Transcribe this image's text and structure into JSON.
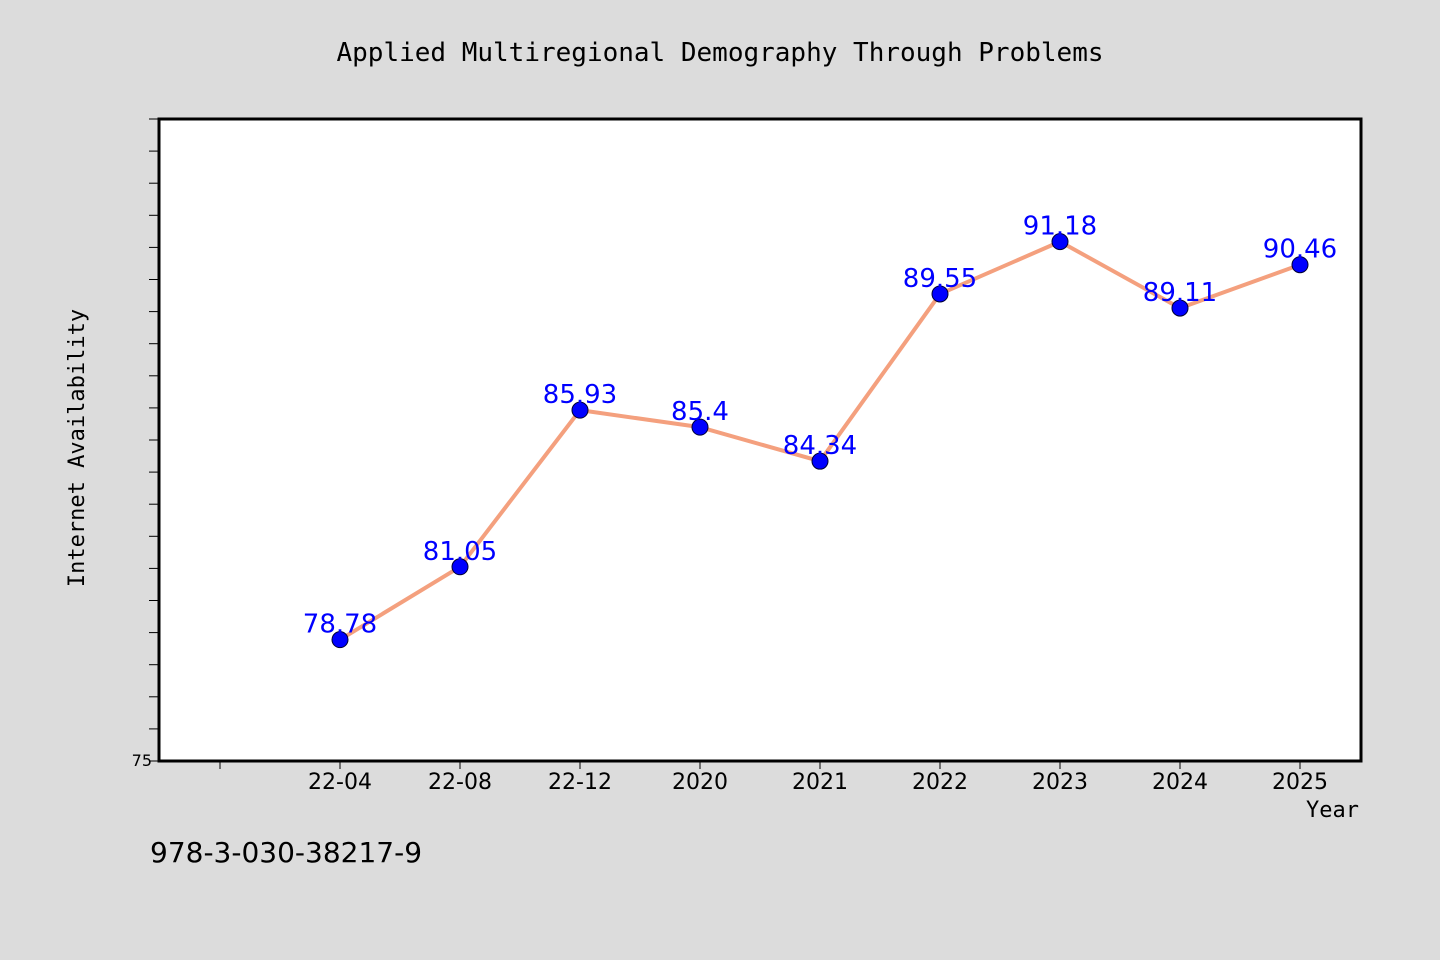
{
  "chart_data": {
    "type": "line",
    "title": "Applied Multiregional Demography Through Problems",
    "xlabel": "Year",
    "ylabel": "Internet Availability",
    "categories": [
      "22-04",
      "22-08",
      "22-12",
      "2020",
      "2021",
      "2022",
      "2023",
      "2024",
      "2025"
    ],
    "series": [
      {
        "values": [
          78.78,
          81.05,
          85.93,
          85.4,
          84.34,
          89.55,
          91.18,
          89.11,
          90.46
        ],
        "labels": [
          "78.78",
          "81.05",
          "85.93",
          "85.4",
          "84.34",
          "89.55",
          "91.18",
          "89.11",
          "90.46"
        ]
      }
    ],
    "ylim": [
      75,
      95
    ],
    "yticks_labeled": [
      "75"
    ],
    "grid": false,
    "legend": "none",
    "colors": {
      "line": "#f4a07e",
      "marker": "#0000ff",
      "data_label": "#0000ff",
      "background": "#dcdcdc",
      "plot_background": "#ffffff"
    }
  },
  "footer": {
    "isbn": "978-3-030-38217-9"
  }
}
